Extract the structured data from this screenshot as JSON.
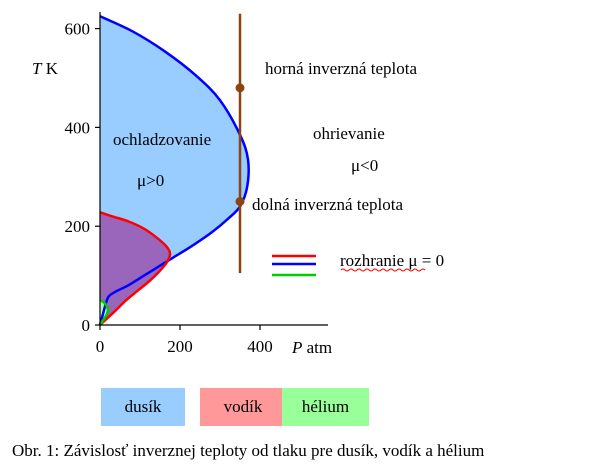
{
  "chart_data": {
    "type": "area",
    "xlabel": "P atm",
    "ylabel": "T K",
    "xlim": [
      0,
      460
    ],
    "ylim": [
      0,
      620
    ],
    "xticks": [
      "0",
      "200",
      "400"
    ],
    "yticks": [
      "0",
      "200",
      "400",
      "600"
    ],
    "series": [
      {
        "name": "dusík",
        "color": "#0000ff",
        "fill": "#99ccff",
        "points": [
          [
            0,
            625
          ],
          [
            80,
            595
          ],
          [
            160,
            555
          ],
          [
            240,
            505
          ],
          [
            300,
            455
          ],
          [
            350,
            385
          ],
          [
            370,
            335
          ],
          [
            368,
            280
          ],
          [
            350,
            240
          ],
          [
            320,
            215
          ],
          [
            280,
            188
          ],
          [
            230,
            160
          ],
          [
            190,
            140
          ],
          [
            150,
            120
          ],
          [
            110,
            100
          ],
          [
            70,
            80
          ],
          [
            40,
            68
          ],
          [
            22,
            58
          ],
          [
            14,
            42
          ],
          [
            8,
            24
          ],
          [
            4,
            12
          ],
          [
            0,
            0
          ]
        ]
      },
      {
        "name": "vodík",
        "color": "#ff0000",
        "fill": "#9966bb",
        "points": [
          [
            0,
            228
          ],
          [
            30,
            220
          ],
          [
            70,
            210
          ],
          [
            110,
            195
          ],
          [
            140,
            178
          ],
          [
            165,
            160
          ],
          [
            175,
            145
          ],
          [
            168,
            128
          ],
          [
            150,
            110
          ],
          [
            125,
            90
          ],
          [
            95,
            70
          ],
          [
            65,
            50
          ],
          [
            40,
            30
          ],
          [
            20,
            15
          ],
          [
            0,
            0
          ]
        ]
      },
      {
        "name": "hélium",
        "color": "#00cc00",
        "fill": "#b0ffb0",
        "points": [
          [
            0,
            50
          ],
          [
            6,
            48
          ],
          [
            12,
            44
          ],
          [
            17,
            38
          ],
          [
            20,
            30
          ],
          [
            16,
            20
          ],
          [
            8,
            10
          ],
          [
            0,
            0
          ]
        ]
      }
    ],
    "vertical_line": {
      "x": 350,
      "color": "#8b4513",
      "y_range": [
        105,
        630
      ]
    },
    "markers": [
      {
        "x": 350,
        "y": 480,
        "label": "horná inverzná teplota"
      },
      {
        "x": 350,
        "y": 250,
        "label": "dolná inverzná teplota"
      }
    ],
    "region_labels": [
      {
        "text": "ochladzovanie",
        "x": 35,
        "y": 375
      },
      {
        "text": "μ>0",
        "x": 65,
        "y": 295
      },
      {
        "text": "ohrievanie",
        "x": 490,
        "y": 385
      },
      {
        "text": "μ<0",
        "x": 520,
        "y": 335
      }
    ],
    "legend_label": "rozhranie μ = 0"
  },
  "legend_boxes": [
    {
      "label": "dusík",
      "color": "#99ccff"
    },
    {
      "label": "vodík",
      "color": "#ff9999"
    },
    {
      "label": "hélium",
      "color": "#99ff99"
    }
  ],
  "caption": "Obr. 1: Závislosť inverznej teploty od tlaku pre dusík, vodík a hélium"
}
